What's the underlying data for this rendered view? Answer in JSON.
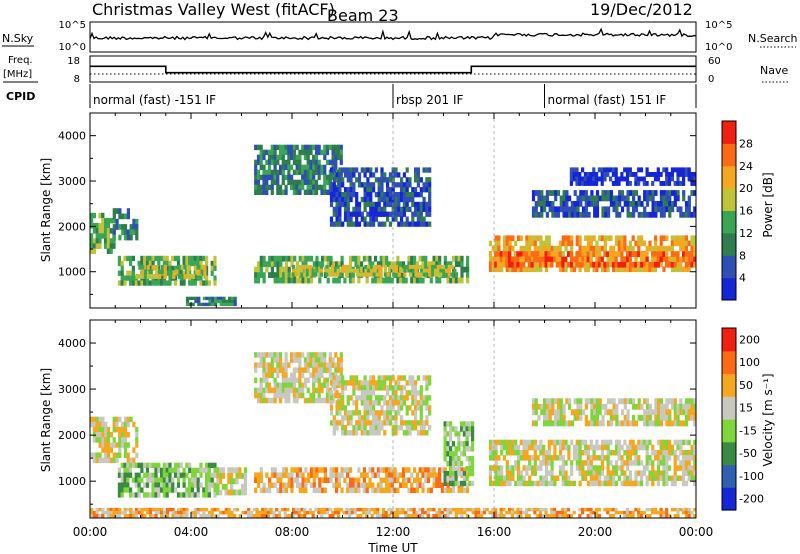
{
  "header": {
    "title": "Christmas Valley West (fitACF)",
    "beam": "Beam 23",
    "date": "19/Dec/2012"
  },
  "top_panels": {
    "nsky_label": "N.Sky",
    "nsky_ticks": [
      "10^5",
      "10^0"
    ],
    "nsearch_label": "N.Search",
    "nsearch_ticks": [
      "10^5",
      "10^0"
    ],
    "freq_label": "Freq.",
    "freq_unit": "[MHz]",
    "freq_ticks": [
      "18",
      "8"
    ],
    "nave_label": "Nave",
    "nave_ticks": [
      "60",
      "0"
    ],
    "cpid_label": "CPID",
    "cpid_segments": [
      {
        "label": "normal (fast) -151 IF",
        "start_hour": 0
      },
      {
        "label": "rbsp 201 IF",
        "start_hour": 12
      },
      {
        "label": "normal (fast) 151 IF",
        "start_hour": 18
      }
    ],
    "freq_steps": [
      {
        "hour": 0,
        "mhz": 14.5
      },
      {
        "hour": 3.0,
        "mhz": 11.5
      },
      {
        "hour": 15.1,
        "mhz": 14.5
      },
      {
        "hour": 24,
        "mhz": 14.5
      }
    ]
  },
  "chart_data": [
    {
      "type": "heatmap",
      "panel": "power",
      "ylabel": "Slant Range [km]",
      "yticks": [
        1000,
        2000,
        3000,
        4000
      ],
      "ylim": [
        200,
        4500
      ],
      "xlim_hours": [
        0,
        24
      ],
      "colorbar_label": "Power [dB]",
      "colorbar_ticks": [
        "4",
        "8",
        "12",
        "16",
        "20",
        "24",
        "28"
      ],
      "colorbar_colors": [
        "#1426d6",
        "#2f4fb5",
        "#2f7d4f",
        "#3aa655",
        "#c0c23a",
        "#f5a81f",
        "#ff6a14",
        "#f02010"
      ],
      "echo_regions": [
        {
          "t0": 0.0,
          "t1": 1.0,
          "r0": 1400,
          "r1": 2300,
          "level": 3
        },
        {
          "t0": 0.9,
          "t1": 1.9,
          "r0": 1700,
          "r1": 2400,
          "level": 2
        },
        {
          "t0": 1.1,
          "t1": 5.0,
          "r0": 700,
          "r1": 1350,
          "level": 3
        },
        {
          "t0": 1.8,
          "t1": 4.6,
          "r0": 850,
          "r1": 1150,
          "level": 4
        },
        {
          "t0": 6.5,
          "t1": 15.0,
          "r0": 750,
          "r1": 1350,
          "level": 3
        },
        {
          "t0": 8.0,
          "t1": 14.5,
          "r0": 900,
          "r1": 1150,
          "level": 4
        },
        {
          "t0": 6.5,
          "t1": 10.0,
          "r0": 2700,
          "r1": 3800,
          "level": 2
        },
        {
          "t0": 9.5,
          "t1": 13.5,
          "r0": 2000,
          "r1": 3300,
          "level": 1
        },
        {
          "t0": 15.8,
          "t1": 24.0,
          "r0": 1000,
          "r1": 1800,
          "level": 5
        },
        {
          "t0": 16.0,
          "t1": 24.0,
          "r0": 1100,
          "r1": 1450,
          "level": 6
        },
        {
          "t0": 17.5,
          "t1": 24.0,
          "r0": 2200,
          "r1": 2800,
          "level": 1
        },
        {
          "t0": 19.0,
          "t1": 24.0,
          "r0": 2900,
          "r1": 3300,
          "level": 0
        },
        {
          "t0": 3.8,
          "t1": 5.8,
          "r0": 250,
          "r1": 450,
          "level": 2
        }
      ]
    },
    {
      "type": "heatmap",
      "panel": "velocity",
      "ylabel": "Slant Range [km]",
      "yticks": [
        1000,
        2000,
        3000,
        4000
      ],
      "ylim": [
        200,
        4500
      ],
      "xlim_hours": [
        0,
        24
      ],
      "xticks": [
        "00:00",
        "04:00",
        "08:00",
        "12:00",
        "16:00",
        "20:00",
        "00:00"
      ],
      "xlabel": "Time UT",
      "colorbar_label": "Velocity [m s⁻¹]",
      "colorbar_ticks": [
        "200",
        "100",
        "50",
        "15",
        "-15",
        "-50",
        "-100",
        "-200"
      ],
      "colorbar_colors": [
        "#1426d6",
        "#2f5fb0",
        "#3a8a44",
        "#7fd63a",
        "#c8c8c0",
        "#f5a81f",
        "#ff6a14",
        "#f02010"
      ],
      "echo_regions": [
        {
          "t0": 0.0,
          "t1": 1.9,
          "r0": 1400,
          "r1": 2400,
          "level": 4
        },
        {
          "t0": 1.1,
          "t1": 5.0,
          "r0": 650,
          "r1": 1400,
          "level": 3
        },
        {
          "t0": 5.0,
          "t1": 6.2,
          "r0": 700,
          "r1": 1300,
          "level": 4
        },
        {
          "t0": 6.5,
          "t1": 15.0,
          "r0": 750,
          "r1": 1300,
          "level": 5
        },
        {
          "t0": 6.5,
          "t1": 10.0,
          "r0": 2700,
          "r1": 3800,
          "level": 4
        },
        {
          "t0": 9.5,
          "t1": 13.5,
          "r0": 2000,
          "r1": 3300,
          "level": 4
        },
        {
          "t0": 14.0,
          "t1": 15.2,
          "r0": 900,
          "r1": 2300,
          "level": 3
        },
        {
          "t0": 15.8,
          "t1": 24.0,
          "r0": 900,
          "r1": 1900,
          "level": 4
        },
        {
          "t0": 17.5,
          "t1": 24.0,
          "r0": 2200,
          "r1": 2800,
          "level": 4
        },
        {
          "t0": 0.0,
          "t1": 24.0,
          "r0": 220,
          "r1": 420,
          "level": 5
        }
      ]
    }
  ]
}
